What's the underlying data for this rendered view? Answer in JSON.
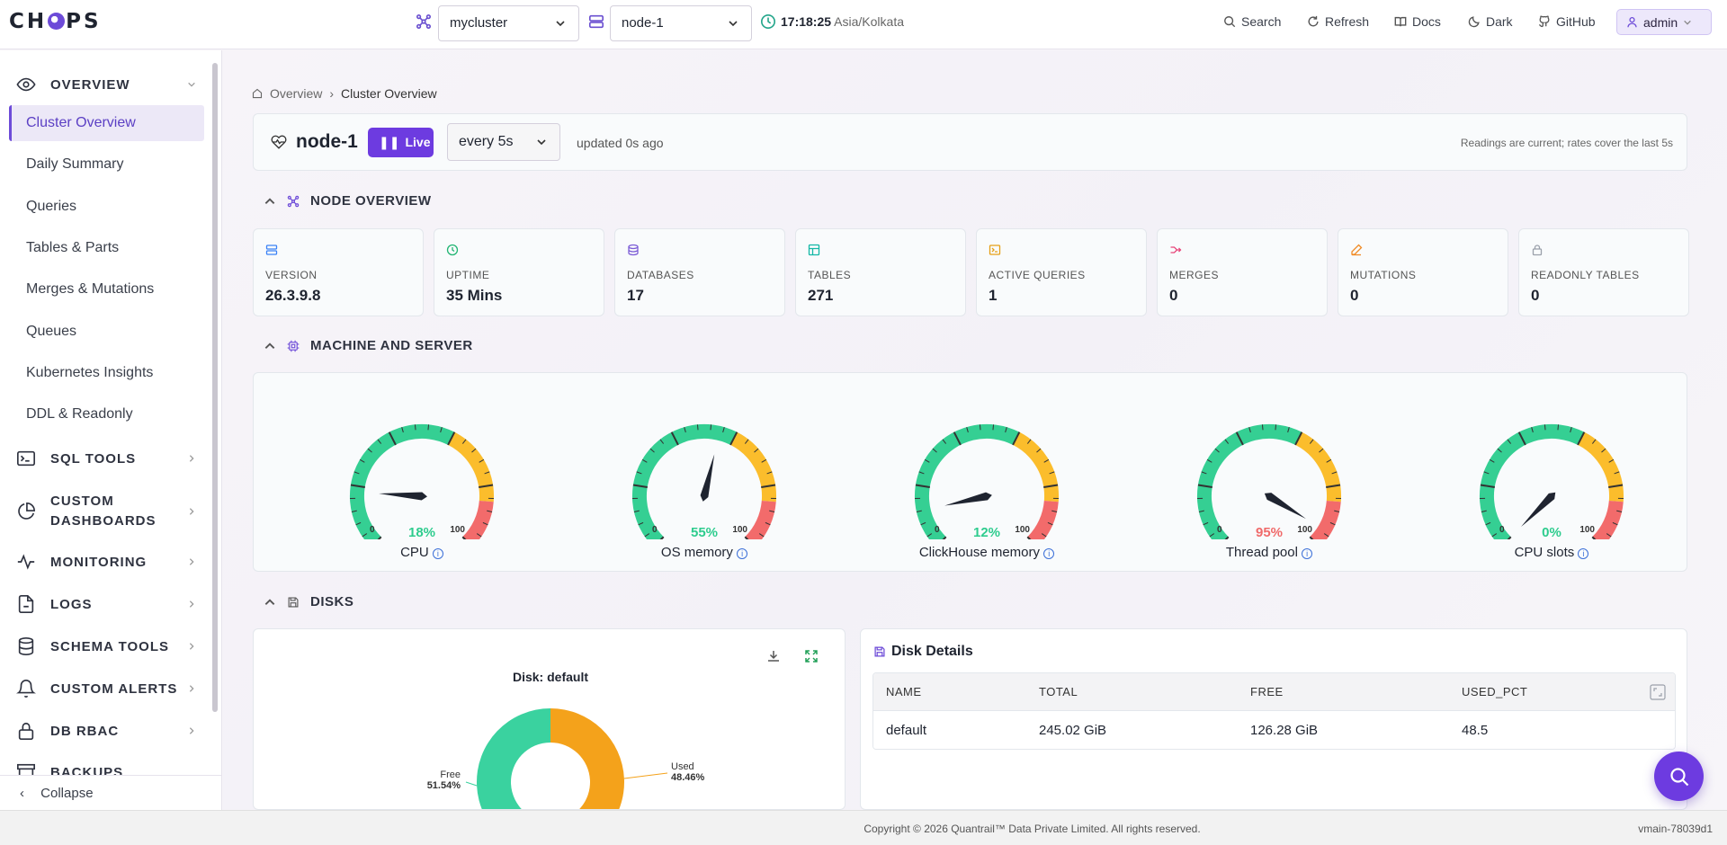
{
  "app": {
    "logo": "CHOPS"
  },
  "topbar": {
    "cluster": "mycluster",
    "node": "node-1",
    "time": "17:18:25",
    "timezone": "Asia/Kolkata",
    "search": "Search",
    "refresh": "Refresh",
    "docs": "Docs",
    "theme": "Dark",
    "github": "GitHub",
    "user": "admin"
  },
  "sidebar": {
    "overview": "OVERVIEW",
    "items": [
      "Cluster Overview",
      "Daily Summary",
      "Queries",
      "Tables & Parts",
      "Merges & Mutations",
      "Queues",
      "Kubernetes Insights",
      "DDL & Readonly"
    ],
    "sections": [
      "SQL TOOLS",
      "CUSTOM DASHBOARDS",
      "MONITORING",
      "LOGS",
      "SCHEMA TOOLS",
      "CUSTOM ALERTS",
      "DB RBAC",
      "BACKUPS"
    ],
    "collapse": "Collapse"
  },
  "breadcrumb": {
    "root": "Overview",
    "current": "Cluster Overview"
  },
  "header": {
    "node": "node-1",
    "live": "Live",
    "interval": "every 5s",
    "updated": "updated 0s ago",
    "note": "Readings are current; rates cover the last 5s"
  },
  "sections": {
    "node_overview": "NODE OVERVIEW",
    "machine": "MACHINE AND SERVER",
    "disks": "DISKS"
  },
  "stats": [
    {
      "label": "VERSION",
      "value": "26.3.9.8",
      "icon": "server-icon",
      "color": "#3b82f6"
    },
    {
      "label": "UPTIME",
      "value": "35 Mins",
      "icon": "clock-icon",
      "color": "#22b573"
    },
    {
      "label": "DATABASES",
      "value": "17",
      "icon": "database-icon",
      "color": "#7c5cd6"
    },
    {
      "label": "TABLES",
      "value": "271",
      "icon": "table-icon",
      "color": "#14b8a6"
    },
    {
      "label": "ACTIVE QUERIES",
      "value": "1",
      "icon": "terminal-icon",
      "color": "#e6a017"
    },
    {
      "label": "MERGES",
      "value": "0",
      "icon": "merge-icon",
      "color": "#e8457a"
    },
    {
      "label": "MUTATIONS",
      "value": "0",
      "icon": "edit-icon",
      "color": "#f08a24"
    },
    {
      "label": "READONLY TABLES",
      "value": "0",
      "icon": "lock-icon",
      "color": "#9aa0aa"
    }
  ],
  "gauges": [
    {
      "label": "CPU",
      "value": 18,
      "pct": "18%",
      "color": "#2ecc8e"
    },
    {
      "label": "OS memory",
      "value": 55,
      "pct": "55%",
      "color": "#2ecc8e"
    },
    {
      "label": "ClickHouse memory",
      "value": 12,
      "pct": "12%",
      "color": "#2ecc8e"
    },
    {
      "label": "Thread pool",
      "value": 95,
      "pct": "95%",
      "color": "#f06a6a"
    },
    {
      "label": "CPU slots",
      "value": 0,
      "pct": "0%",
      "color": "#2ecc8e"
    }
  ],
  "gauge_scale": {
    "min": "0",
    "max": "100"
  },
  "disk_chart": {
    "title": "Disk: default",
    "free_label": "Free",
    "free_pct": "51.54%",
    "used_label": "Used",
    "used_pct": "48.46%",
    "free_value": 51.54,
    "used_value": 48.46,
    "free_color": "#3ad29f",
    "used_color": "#f4a21b"
  },
  "disk_details": {
    "title": "Disk Details",
    "columns": [
      "NAME",
      "TOTAL",
      "FREE",
      "USED_PCT"
    ],
    "rows": [
      [
        "default",
        "245.02 GiB",
        "126.28 GiB",
        "48.5"
      ]
    ]
  },
  "footer": {
    "copyright": "Copyright © 2026 Quantrail™ Data Private Limited. All rights reserved.",
    "version": "vmain-78039d1"
  }
}
